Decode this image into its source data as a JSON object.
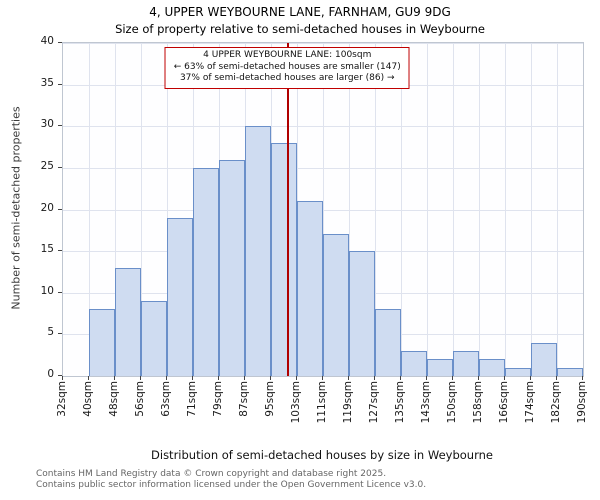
{
  "header": {
    "title": "4, UPPER WEYBOURNE LANE, FARNHAM, GU9 9DG",
    "subtitle": "Size of property relative to semi-detached houses in Weybourne"
  },
  "annotation": {
    "line1": "4 UPPER WEYBOURNE LANE: 100sqm",
    "line2": "← 63% of semi-detached houses are smaller (147)",
    "line3": "37% of semi-detached houses are larger (86) →"
  },
  "axes": {
    "ylabel": "Number of semi-detached properties",
    "xlabel": "Distribution of semi-detached houses by size in Weybourne"
  },
  "footer": {
    "line1": "Contains HM Land Registry data © Crown copyright and database right 2025.",
    "line2": "Contains public sector information licensed under the Open Government Licence v3.0."
  },
  "chart_data": {
    "type": "bar",
    "title": "4, UPPER WEYBOURNE LANE, FARNHAM, GU9 9DG",
    "subtitle": "Size of property relative to semi-detached houses in Weybourne",
    "xlabel": "Distribution of semi-detached houses by size in Weybourne",
    "ylabel": "Number of semi-detached properties",
    "bin_edges": [
      32,
      40,
      48,
      56,
      63,
      71,
      79,
      87,
      95,
      103,
      111,
      119,
      127,
      135,
      143,
      150,
      158,
      166,
      174,
      182,
      190
    ],
    "tick_labels": [
      "32sqm",
      "40sqm",
      "48sqm",
      "56sqm",
      "63sqm",
      "71sqm",
      "79sqm",
      "87sqm",
      "95sqm",
      "103sqm",
      "111sqm",
      "119sqm",
      "127sqm",
      "135sqm",
      "143sqm",
      "150sqm",
      "158sqm",
      "166sqm",
      "174sqm",
      "182sqm",
      "190sqm"
    ],
    "values": [
      0,
      8,
      13,
      9,
      19,
      25,
      26,
      30,
      28,
      21,
      17,
      15,
      8,
      3,
      2,
      3,
      2,
      1,
      4,
      1
    ],
    "ylim": [
      0,
      40
    ],
    "yticks": [
      0,
      5,
      10,
      15,
      20,
      25,
      30,
      35,
      40
    ],
    "grid": true,
    "marker_value": 100,
    "marker_smaller_pct": 63,
    "marker_smaller_count": 147,
    "marker_larger_pct": 37,
    "marker_larger_count": 86,
    "colors": {
      "bar_fill": "#cfdcf1",
      "bar_border": "#6a8fc9",
      "marker_line": "#b00000",
      "annotation_border": "#c00000",
      "grid": "#dfe3ee"
    }
  }
}
